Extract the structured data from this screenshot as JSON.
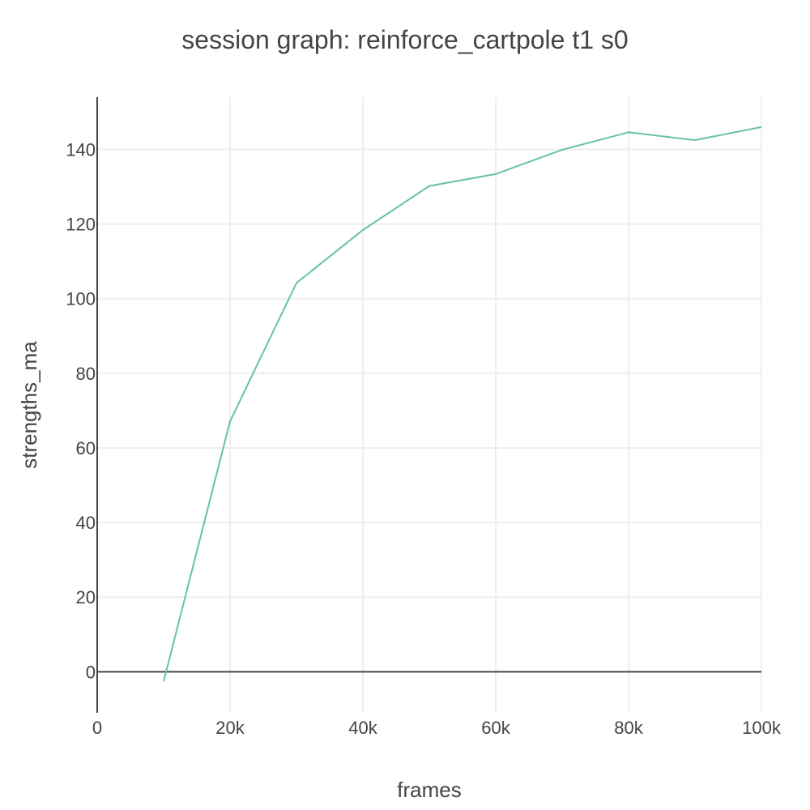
{
  "chart_data": {
    "type": "line",
    "title": "session graph: reinforce_cartpole t1 s0",
    "xlabel": "frames",
    "ylabel": "strengths_ma",
    "xlim": [
      0,
      100000
    ],
    "ylim": [
      -11,
      154
    ],
    "grid": true,
    "x_ticks": [
      0,
      20000,
      40000,
      60000,
      80000,
      100000
    ],
    "x_tick_labels": [
      "0",
      "20k",
      "40k",
      "60k",
      "80k",
      "100k"
    ],
    "y_ticks": [
      0,
      20,
      40,
      60,
      80,
      100,
      120,
      140
    ],
    "y_tick_labels": [
      "0",
      "20",
      "40",
      "60",
      "80",
      "100",
      "120",
      "140"
    ],
    "series": [
      {
        "color": "#66c2a5",
        "x": [
          10000,
          20000,
          30000,
          40000,
          50000,
          60000,
          70000,
          80000,
          90000,
          100000
        ],
        "y": [
          -2.6,
          67.1,
          104.2,
          118.4,
          130.2,
          133.4,
          139.9,
          144.6,
          142.5,
          146.0
        ]
      }
    ]
  }
}
